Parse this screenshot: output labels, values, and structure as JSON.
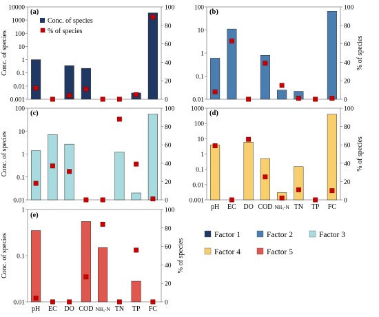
{
  "categories": [
    "pH",
    "EC",
    "DO",
    "COD",
    "NH₃-N",
    "TN",
    "TP",
    "FC"
  ],
  "y_axis_left_label": "Conc. of species",
  "y_axis_right_label": "% of species",
  "pct_ticks": [
    "0",
    "20",
    "40",
    "60",
    "80",
    "100"
  ],
  "legend_inset": {
    "conc_label": "Conc. of species",
    "pct_label": "% of species"
  },
  "factor_legend": [
    {
      "label": "Factor 1",
      "color": "#1f3864"
    },
    {
      "label": "Factor 2",
      "color": "#4a7eb0"
    },
    {
      "label": "Factor 3",
      "color": "#a7dbe0"
    },
    {
      "label": "Factor 4",
      "color": "#f9cf6e"
    },
    {
      "label": "Factor 5",
      "color": "#e0574f"
    }
  ],
  "pct_marker_color": "#cc0000",
  "chart_data": [
    {
      "type": "bar",
      "panel": "(a)",
      "factor": "Factor 1",
      "color": "#1f3864",
      "yscale": "log",
      "ylim": [
        0.001,
        10000
      ],
      "yticks": [
        "0.001",
        "0.01",
        "0.1",
        "1",
        "10",
        "100",
        "1000",
        "10000"
      ],
      "conc": [
        1.0,
        null,
        0.35,
        0.22,
        null,
        null,
        0.003,
        3500
      ],
      "pct": [
        12,
        0,
        4,
        11,
        0,
        0,
        5,
        89
      ]
    },
    {
      "type": "bar",
      "panel": "(b)",
      "factor": "Factor 2",
      "color": "#4a7eb0",
      "yscale": "log",
      "ylim": [
        0.01,
        100
      ],
      "yticks": [
        "0.01",
        "0.1",
        "1",
        "10",
        "100"
      ],
      "conc": [
        0.6,
        11,
        null,
        0.8,
        0.025,
        0.022,
        null,
        65
      ],
      "pct": [
        8,
        63,
        0,
        39,
        15,
        1,
        0,
        1
      ]
    },
    {
      "type": "bar",
      "panel": "(c)",
      "factor": "Factor 3",
      "color": "#a7dbe0",
      "yscale": "log",
      "ylim": [
        0.01,
        100
      ],
      "yticks": [
        "0.01",
        "0.1",
        "1",
        "10",
        "100"
      ],
      "conc": [
        1.4,
        7,
        2.7,
        null,
        null,
        1.2,
        0.02,
        55
      ],
      "pct": [
        18,
        37,
        31,
        0,
        0,
        88,
        39,
        1
      ]
    },
    {
      "type": "bar",
      "panel": "(d)",
      "factor": "Factor 4",
      "color": "#f9cf6e",
      "yscale": "log",
      "ylim": [
        0.001,
        1000
      ],
      "yticks": [
        "0.001",
        "0.01",
        "0.1",
        "1",
        "10",
        "100",
        "1000"
      ],
      "conc": [
        4,
        null,
        6,
        0.5,
        0.003,
        0.15,
        null,
        400
      ],
      "pct": [
        59,
        0,
        66,
        25,
        2,
        11,
        0,
        10
      ]
    },
    {
      "type": "bar",
      "panel": "(e)",
      "factor": "Factor 5",
      "color": "#e0574f",
      "yscale": "log",
      "ylim": [
        0.01,
        1
      ],
      "yticks": [
        "0.01",
        "0.1",
        "1"
      ],
      "conc": [
        0.35,
        null,
        null,
        0.55,
        0.15,
        null,
        0.028,
        null
      ],
      "pct": [
        4,
        0,
        0,
        27,
        84,
        0,
        56,
        0
      ]
    }
  ]
}
